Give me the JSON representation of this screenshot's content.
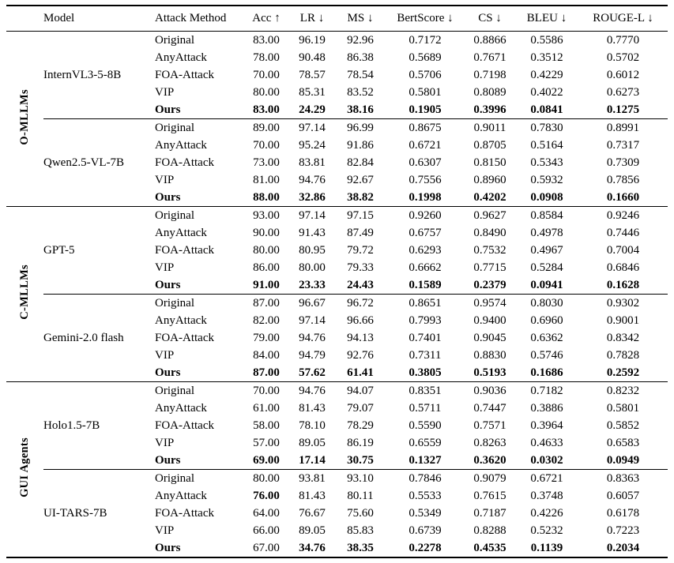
{
  "table": {
    "columns": [
      "Model",
      "Attack Method",
      "Acc ↑",
      "LR ↓",
      "MS ↓",
      "BertScore ↓",
      "CS ↓",
      "BLEU ↓",
      "ROUGE-L ↓"
    ],
    "groups": [
      {
        "label": "O-MLLMs",
        "models": [
          {
            "name": "InternVL3-5-8B",
            "rows": [
              {
                "attack": "Original",
                "attack_bold": false,
                "values": [
                  "83.00",
                  "96.19",
                  "92.96",
                  "0.7172",
                  "0.8866",
                  "0.5586",
                  "0.7770"
                ],
                "bold": []
              },
              {
                "attack": "AnyAttack",
                "attack_bold": false,
                "values": [
                  "78.00",
                  "90.48",
                  "86.38",
                  "0.5689",
                  "0.7671",
                  "0.3512",
                  "0.5702"
                ],
                "bold": []
              },
              {
                "attack": "FOA-Attack",
                "attack_bold": false,
                "values": [
                  "70.00",
                  "78.57",
                  "78.54",
                  "0.5706",
                  "0.7198",
                  "0.4229",
                  "0.6012"
                ],
                "bold": []
              },
              {
                "attack": "VIP",
                "attack_bold": false,
                "values": [
                  "80.00",
                  "85.31",
                  "83.52",
                  "0.5801",
                  "0.8089",
                  "0.4022",
                  "0.6273"
                ],
                "bold": []
              },
              {
                "attack": "Ours",
                "attack_bold": true,
                "values": [
                  "83.00",
                  "24.29",
                  "38.16",
                  "0.1905",
                  "0.3996",
                  "0.0841",
                  "0.1275"
                ],
                "bold": [
                  0,
                  1,
                  2,
                  3,
                  4,
                  5,
                  6
                ]
              }
            ]
          },
          {
            "name": "Qwen2.5-VL-7B",
            "rows": [
              {
                "attack": "Original",
                "attack_bold": false,
                "values": [
                  "89.00",
                  "97.14",
                  "96.99",
                  "0.8675",
                  "0.9011",
                  "0.7830",
                  "0.8991"
                ],
                "bold": []
              },
              {
                "attack": "AnyAttack",
                "attack_bold": false,
                "values": [
                  "70.00",
                  "95.24",
                  "91.86",
                  "0.6721",
                  "0.8705",
                  "0.5164",
                  "0.7317"
                ],
                "bold": []
              },
              {
                "attack": "FOA-Attack",
                "attack_bold": false,
                "values": [
                  "73.00",
                  "83.81",
                  "82.84",
                  "0.6307",
                  "0.8150",
                  "0.5343",
                  "0.7309"
                ],
                "bold": []
              },
              {
                "attack": "VIP",
                "attack_bold": false,
                "values": [
                  "81.00",
                  "94.76",
                  "92.67",
                  "0.7556",
                  "0.8960",
                  "0.5932",
                  "0.7856"
                ],
                "bold": []
              },
              {
                "attack": "Ours",
                "attack_bold": true,
                "values": [
                  "88.00",
                  "32.86",
                  "38.82",
                  "0.1998",
                  "0.4202",
                  "0.0908",
                  "0.1660"
                ],
                "bold": [
                  0,
                  1,
                  2,
                  3,
                  4,
                  5,
                  6
                ]
              }
            ]
          }
        ]
      },
      {
        "label": "C-MLLMs",
        "models": [
          {
            "name": "GPT-5",
            "rows": [
              {
                "attack": "Original",
                "attack_bold": false,
                "values": [
                  "93.00",
                  "97.14",
                  "97.15",
                  "0.9260",
                  "0.9627",
                  "0.8584",
                  "0.9246"
                ],
                "bold": []
              },
              {
                "attack": "AnyAttack",
                "attack_bold": false,
                "values": [
                  "90.00",
                  "91.43",
                  "87.49",
                  "0.6757",
                  "0.8490",
                  "0.4978",
                  "0.7446"
                ],
                "bold": []
              },
              {
                "attack": "FOA-Attack",
                "attack_bold": false,
                "values": [
                  "80.00",
                  "80.95",
                  "79.72",
                  "0.6293",
                  "0.7532",
                  "0.4967",
                  "0.7004"
                ],
                "bold": []
              },
              {
                "attack": "VIP",
                "attack_bold": false,
                "values": [
                  "86.00",
                  "80.00",
                  "79.33",
                  "0.6662",
                  "0.7715",
                  "0.5284",
                  "0.6846"
                ],
                "bold": []
              },
              {
                "attack": "Ours",
                "attack_bold": true,
                "values": [
                  "91.00",
                  "23.33",
                  "24.43",
                  "0.1589",
                  "0.2379",
                  "0.0941",
                  "0.1628"
                ],
                "bold": [
                  0,
                  1,
                  2,
                  3,
                  4,
                  5,
                  6
                ]
              }
            ]
          },
          {
            "name": "Gemini-2.0 flash",
            "rows": [
              {
                "attack": "Original",
                "attack_bold": false,
                "values": [
                  "87.00",
                  "96.67",
                  "96.72",
                  "0.8651",
                  "0.9574",
                  "0.8030",
                  "0.9302"
                ],
                "bold": []
              },
              {
                "attack": "AnyAttack",
                "attack_bold": false,
                "values": [
                  "82.00",
                  "97.14",
                  "96.66",
                  "0.7993",
                  "0.9400",
                  "0.6960",
                  "0.9001"
                ],
                "bold": []
              },
              {
                "attack": "FOA-Attack",
                "attack_bold": false,
                "values": [
                  "79.00",
                  "94.76",
                  "94.13",
                  "0.7401",
                  "0.9045",
                  "0.6362",
                  "0.8342"
                ],
                "bold": []
              },
              {
                "attack": "VIP",
                "attack_bold": false,
                "values": [
                  "84.00",
                  "94.79",
                  "92.76",
                  "0.7311",
                  "0.8830",
                  "0.5746",
                  "0.7828"
                ],
                "bold": []
              },
              {
                "attack": "Ours",
                "attack_bold": true,
                "values": [
                  "87.00",
                  "57.62",
                  "61.41",
                  "0.3805",
                  "0.5193",
                  "0.1686",
                  "0.2592"
                ],
                "bold": [
                  0,
                  1,
                  2,
                  3,
                  4,
                  5,
                  6
                ]
              }
            ]
          }
        ]
      },
      {
        "label": "GUI Agents",
        "models": [
          {
            "name": "Holo1.5-7B",
            "rows": [
              {
                "attack": "Original",
                "attack_bold": false,
                "values": [
                  "70.00",
                  "94.76",
                  "94.07",
                  "0.8351",
                  "0.9036",
                  "0.7182",
                  "0.8232"
                ],
                "bold": []
              },
              {
                "attack": "AnyAttack",
                "attack_bold": false,
                "values": [
                  "61.00",
                  "81.43",
                  "79.07",
                  "0.5711",
                  "0.7447",
                  "0.3886",
                  "0.5801"
                ],
                "bold": []
              },
              {
                "attack": "FOA-Attack",
                "attack_bold": false,
                "values": [
                  "58.00",
                  "78.10",
                  "78.29",
                  "0.5590",
                  "0.7571",
                  "0.3964",
                  "0.5852"
                ],
                "bold": []
              },
              {
                "attack": "VIP",
                "attack_bold": false,
                "values": [
                  "57.00",
                  "89.05",
                  "86.19",
                  "0.6559",
                  "0.8263",
                  "0.4633",
                  "0.6583"
                ],
                "bold": []
              },
              {
                "attack": "Ours",
                "attack_bold": true,
                "values": [
                  "69.00",
                  "17.14",
                  "30.75",
                  "0.1327",
                  "0.3620",
                  "0.0302",
                  "0.0949"
                ],
                "bold": [
                  0,
                  1,
                  2,
                  3,
                  4,
                  5,
                  6
                ]
              }
            ]
          },
          {
            "name": "UI-TARS-7B",
            "rows": [
              {
                "attack": "Original",
                "attack_bold": false,
                "values": [
                  "80.00",
                  "93.81",
                  "93.10",
                  "0.7846",
                  "0.9079",
                  "0.6721",
                  "0.8363"
                ],
                "bold": []
              },
              {
                "attack": "AnyAttack",
                "attack_bold": false,
                "values": [
                  "76.00",
                  "81.43",
                  "80.11",
                  "0.5533",
                  "0.7615",
                  "0.3748",
                  "0.6057"
                ],
                "bold": [
                  0
                ]
              },
              {
                "attack": "FOA-Attack",
                "attack_bold": false,
                "values": [
                  "64.00",
                  "76.67",
                  "75.60",
                  "0.5349",
                  "0.7187",
                  "0.4226",
                  "0.6178"
                ],
                "bold": []
              },
              {
                "attack": "VIP",
                "attack_bold": false,
                "values": [
                  "66.00",
                  "89.05",
                  "85.83",
                  "0.6739",
                  "0.8288",
                  "0.5232",
                  "0.7223"
                ],
                "bold": []
              },
              {
                "attack": "Ours",
                "attack_bold": true,
                "values": [
                  "67.00",
                  "34.76",
                  "38.35",
                  "0.2278",
                  "0.4535",
                  "0.1139",
                  "0.2034"
                ],
                "bold": [
                  1,
                  2,
                  3,
                  4,
                  5,
                  6
                ]
              }
            ]
          }
        ]
      }
    ]
  }
}
